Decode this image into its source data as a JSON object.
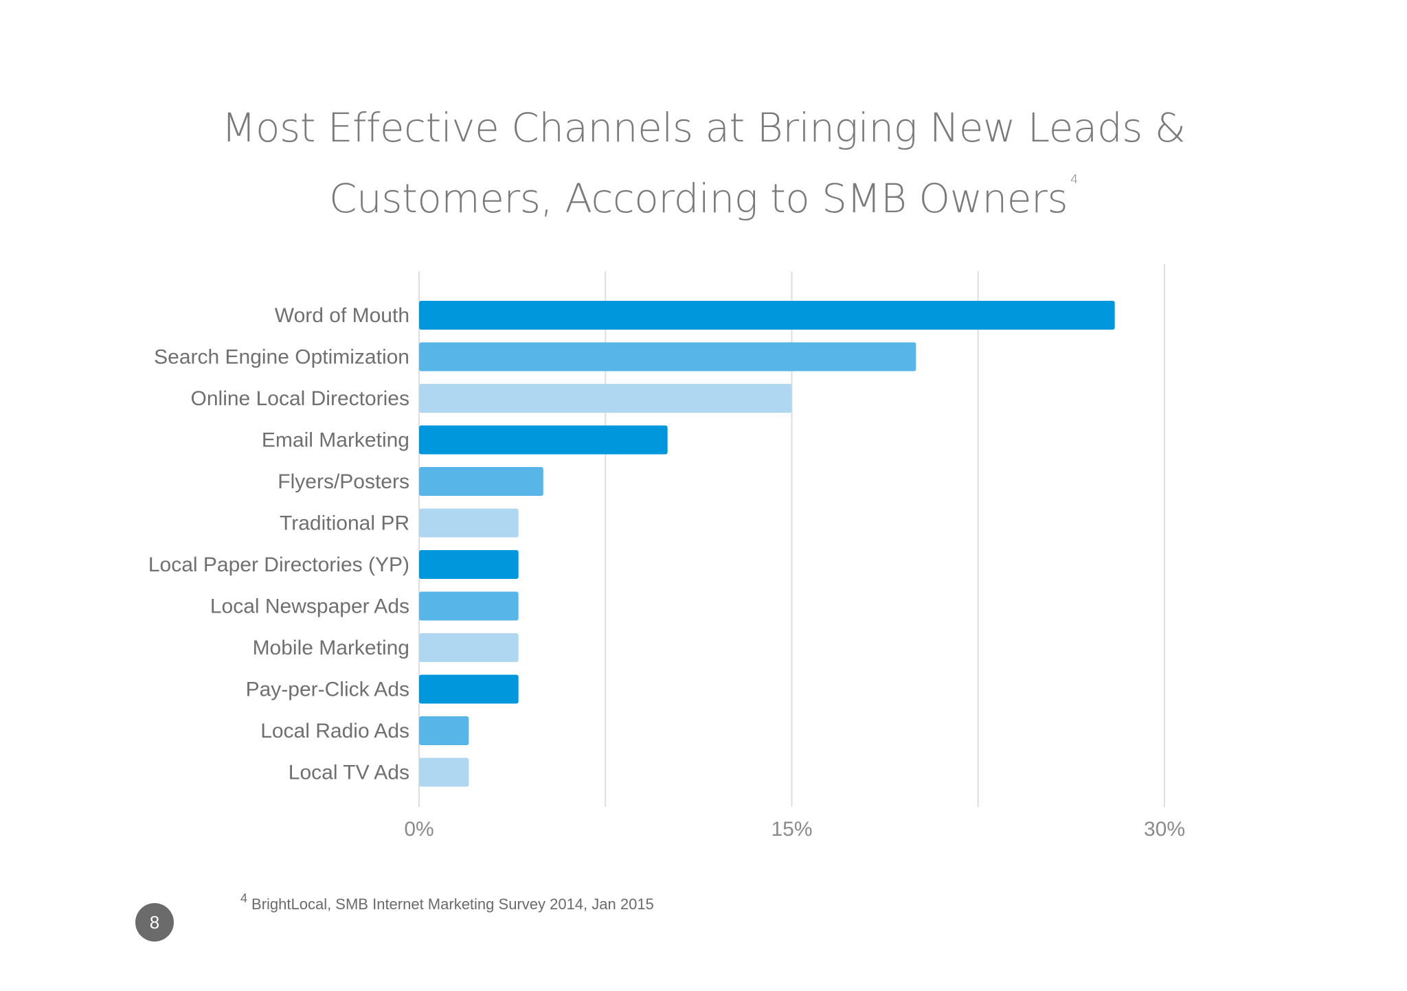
{
  "title": {
    "line1": "Most Effective Channels at Bringing New Leads &",
    "line2": "Customers, According to SMB Owners",
    "footnote_ref": "4"
  },
  "chart_data": {
    "type": "bar",
    "orientation": "horizontal",
    "title": "Most Effective Channels at Bringing New Leads & Customers, According to SMB Owners",
    "categories": [
      "Word of Mouth",
      "Search Engine Optimization",
      "Online Local Directories",
      "Email Marketing",
      "Flyers/Posters",
      "Traditional PR",
      "Local Paper Directories (YP)",
      "Local Newspaper Ads",
      "Mobile Marketing",
      "Pay-per-Click Ads",
      "Local Radio Ads",
      "Local TV Ads"
    ],
    "values": [
      28,
      20,
      15,
      10,
      5,
      4,
      4,
      4,
      4,
      4,
      2,
      2
    ],
    "value_unit": "%",
    "xlim": [
      0,
      30
    ],
    "x_ticks": [
      {
        "value": 0,
        "label": "0%"
      },
      {
        "value": 15,
        "label": "15%"
      },
      {
        "value": 30,
        "label": "30%"
      }
    ],
    "gridlines_at": [
      0,
      7.5,
      15,
      22.5,
      30
    ],
    "grid": true,
    "legend": "none",
    "colors": [
      "#0097dc",
      "#57b5e8",
      "#afd7f2"
    ]
  },
  "footnote": {
    "marker": "4",
    "text": "BrightLocal, SMB Internet Marketing Survey 2014, Jan 2015"
  },
  "page_number": "8"
}
